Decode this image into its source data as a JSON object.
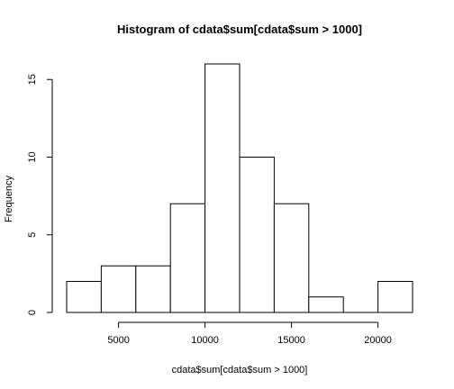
{
  "chart_data": {
    "type": "bar",
    "title": "Histogram of cdata$sum[cdata$sum > 1000]",
    "xlabel": "cdata$sum[cdata$sum > 1000]",
    "ylabel": "Frequency",
    "bins": [
      {
        "start": 2000,
        "end": 4000,
        "count": 2
      },
      {
        "start": 4000,
        "end": 6000,
        "count": 3
      },
      {
        "start": 6000,
        "end": 8000,
        "count": 3
      },
      {
        "start": 8000,
        "end": 10000,
        "count": 7
      },
      {
        "start": 10000,
        "end": 12000,
        "count": 16
      },
      {
        "start": 12000,
        "end": 14000,
        "count": 10
      },
      {
        "start": 14000,
        "end": 16000,
        "count": 7
      },
      {
        "start": 16000,
        "end": 18000,
        "count": 1
      },
      {
        "start": 18000,
        "end": 20000,
        "count": 0
      },
      {
        "start": 20000,
        "end": 22000,
        "count": 2
      }
    ],
    "xlim": [
      2000,
      22000
    ],
    "ylim": [
      0,
      16
    ],
    "x_ticks": [
      5000,
      10000,
      15000,
      20000
    ],
    "y_ticks": [
      0,
      5,
      10,
      15
    ],
    "grid": false,
    "legend": "none",
    "bar_fill": "#ffffff",
    "bar_stroke": "#000000"
  }
}
